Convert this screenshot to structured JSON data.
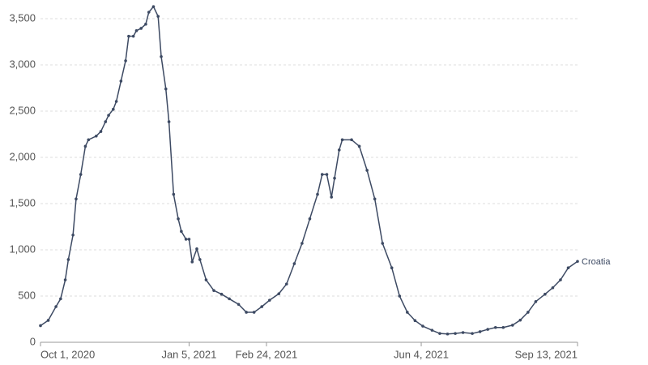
{
  "chart_data": {
    "type": "line",
    "x": [
      "2020-10-01",
      "2020-10-06",
      "2020-10-11",
      "2020-10-14",
      "2020-10-17",
      "2020-10-19",
      "2020-10-22",
      "2020-10-24",
      "2020-10-27",
      "2020-10-30",
      "2020-11-01",
      "2020-11-06",
      "2020-11-09",
      "2020-11-12",
      "2020-11-14",
      "2020-11-17",
      "2020-11-19",
      "2020-11-22",
      "2020-11-25",
      "2020-11-27",
      "2020-11-30",
      "2020-12-02",
      "2020-12-05",
      "2020-12-08",
      "2020-12-10",
      "2020-12-13",
      "2020-12-16",
      "2020-12-18",
      "2020-12-21",
      "2020-12-23",
      "2020-12-26",
      "2020-12-29",
      "2020-12-31",
      "2021-01-03",
      "2021-01-05",
      "2021-01-07",
      "2021-01-10",
      "2021-01-12",
      "2021-01-16",
      "2021-01-21",
      "2021-01-26",
      "2021-01-31",
      "2021-02-06",
      "2021-02-11",
      "2021-02-16",
      "2021-02-21",
      "2021-02-26",
      "2021-03-04",
      "2021-03-09",
      "2021-03-14",
      "2021-03-19",
      "2021-03-24",
      "2021-03-29",
      "2021-04-01",
      "2021-04-04",
      "2021-04-07",
      "2021-04-09",
      "2021-04-12",
      "2021-04-14",
      "2021-04-20",
      "2021-04-25",
      "2021-04-30",
      "2021-05-05",
      "2021-05-10",
      "2021-05-16",
      "2021-05-21",
      "2021-05-26",
      "2021-05-31",
      "2021-06-05",
      "2021-06-11",
      "2021-06-16",
      "2021-06-21",
      "2021-06-26",
      "2021-07-01",
      "2021-07-07",
      "2021-07-12",
      "2021-07-17",
      "2021-07-22",
      "2021-07-27",
      "2021-08-02",
      "2021-08-07",
      "2021-08-12",
      "2021-08-17",
      "2021-08-23",
      "2021-08-28",
      "2021-09-02",
      "2021-09-07",
      "2021-09-13"
    ],
    "series": [
      {
        "name": "Croatia",
        "color": "#3d4a63",
        "values": [
          180,
          237,
          386,
          470,
          675,
          895,
          1160,
          1550,
          1815,
          2120,
          2190,
          2230,
          2280,
          2385,
          2455,
          2520,
          2605,
          2825,
          3045,
          3310,
          3310,
          3370,
          3395,
          3440,
          3570,
          3630,
          3525,
          3090,
          2740,
          2385,
          1600,
          1335,
          1200,
          1115,
          1115,
          870,
          1010,
          895,
          675,
          560,
          520,
          470,
          410,
          325,
          325,
          385,
          455,
          525,
          630,
          850,
          1070,
          1335,
          1600,
          1815,
          1815,
          1570,
          1775,
          2080,
          2190,
          2190,
          2120,
          1860,
          1550,
          1070,
          805,
          500,
          325,
          235,
          175,
          130,
          95,
          90,
          95,
          105,
          95,
          115,
          140,
          160,
          160,
          185,
          240,
          325,
          440,
          520,
          590,
          675,
          805,
          875
        ]
      }
    ],
    "xlim": [
      "2020-10-01",
      "2021-09-13"
    ],
    "xticks": [
      {
        "value": "2020-10-01",
        "label": "Oct 1, 2020"
      },
      {
        "value": "2021-01-05",
        "label": "Jan 5, 2021"
      },
      {
        "value": "2021-02-24",
        "label": "Feb 24, 2021"
      },
      {
        "value": "2021-06-04",
        "label": "Jun 4, 2021"
      },
      {
        "value": "2021-09-13",
        "label": "Sep 13, 2021"
      }
    ],
    "ylim": [
      0,
      3500
    ],
    "yticks": [
      0,
      500,
      {
        "value": 1000,
        "label": "1,000"
      },
      {
        "value": 1500,
        "label": "1,500"
      },
      {
        "value": 2000,
        "label": "2,000"
      },
      {
        "value": 2500,
        "label": "2,500"
      },
      {
        "value": 3000,
        "label": "3,000"
      },
      {
        "value": 3500,
        "label": "3,500"
      }
    ],
    "grid": true
  }
}
